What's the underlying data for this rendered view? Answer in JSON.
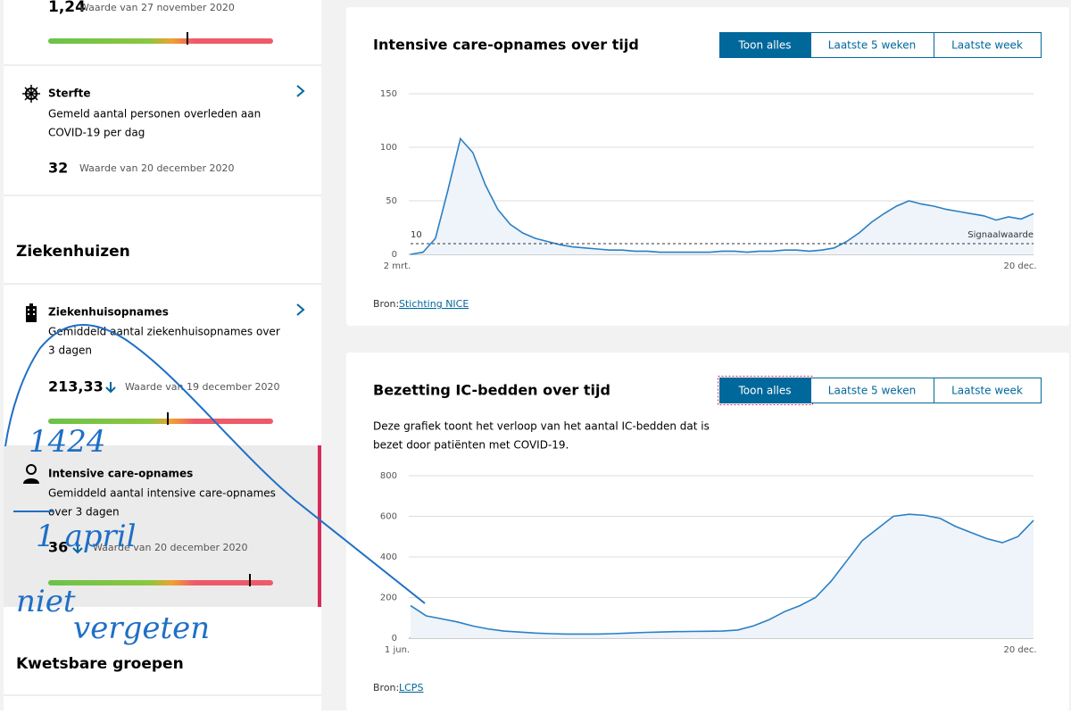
{
  "sidebar": {
    "top_value": "1,24",
    "top_date": "Waarde van 27 november 2020",
    "items": [
      {
        "title": "Sterfte",
        "description": [
          "Gemeld aantal personen overleden aan",
          "COVID-19 per dag"
        ],
        "value": "32",
        "date": "Waarde van 20 december 2020"
      },
      {
        "title": "Ziekenhuisopnames",
        "description": [
          "Gemiddeld aantal ziekenhuisopnames over",
          "3 dagen"
        ],
        "value": "213,33",
        "date": "Waarde van 19 december 2020"
      },
      {
        "title": "Intensive care-opnames",
        "description": [
          "Gemiddeld aantal intensive care-opnames",
          "over 3 dagen"
        ],
        "value": "36",
        "date": "Waarde van 20 december 2020"
      }
    ],
    "sections": [
      "Ziekenhuizen",
      "Kwetsbare groepen"
    ]
  },
  "chart_data": [
    {
      "type": "line",
      "title": "Intensive care-opnames over tijd",
      "buttons": [
        "Toon alles",
        "Laatste 5 weken",
        "Laatste week"
      ],
      "categories": [
        "2 mrt.",
        null,
        null,
        null,
        null,
        null,
        null,
        null,
        null,
        null,
        null,
        null,
        null,
        null,
        null,
        null,
        null,
        null,
        null,
        null,
        null,
        null,
        null,
        null,
        null,
        null,
        null,
        null,
        null,
        null,
        null,
        null,
        null,
        null,
        null,
        null,
        null,
        null,
        null,
        null,
        null,
        null,
        null,
        null,
        null,
        null,
        null,
        null,
        null,
        null,
        "20 dec."
      ],
      "values": [
        0,
        2,
        15,
        60,
        108,
        95,
        65,
        42,
        28,
        20,
        15,
        12,
        9,
        7,
        6,
        5,
        4,
        4,
        3,
        3,
        2,
        2,
        2,
        2,
        2,
        3,
        3,
        2,
        3,
        3,
        4,
        4,
        3,
        4,
        6,
        12,
        20,
        30,
        38,
        45,
        50,
        47,
        45,
        42,
        40,
        38,
        36,
        32,
        35,
        33,
        38
      ],
      "color": "#2b7fc3",
      "ylim": [
        0,
        150
      ],
      "yticks": [
        0,
        50,
        100,
        150
      ],
      "grid": true,
      "signal_value": 10,
      "signal_label": "Signaalwaarde",
      "source_prefix": "Bron:",
      "source": "Stichting NICE"
    },
    {
      "type": "line",
      "title": "Bezetting IC-bedden over tijd",
      "buttons": [
        "Toon alles",
        "Laatste 5 weken",
        "Laatste week"
      ],
      "description": [
        "Deze grafiek toont het verloop van het aantal IC-bedden dat is",
        "bezet door patiënten met COVID-19."
      ],
      "categories": [
        "1 jun.",
        null,
        null,
        null,
        null,
        null,
        null,
        null,
        null,
        null,
        null,
        null,
        null,
        null,
        null,
        null,
        null,
        null,
        null,
        null,
        null,
        null,
        null,
        null,
        null,
        null,
        null,
        null,
        null,
        null,
        null,
        null,
        null,
        null,
        null,
        null,
        null,
        null,
        null,
        null,
        "20 dec."
      ],
      "values": [
        160,
        110,
        95,
        80,
        60,
        45,
        35,
        30,
        25,
        22,
        20,
        20,
        20,
        22,
        25,
        28,
        30,
        32,
        33,
        34,
        35,
        40,
        60,
        90,
        130,
        160,
        200,
        280,
        380,
        480,
        540,
        600,
        610,
        605,
        590,
        550,
        520,
        490,
        470,
        500,
        580
      ],
      "color": "#2b7fc3",
      "ylim": [
        0,
        800
      ],
      "yticks": [
        0,
        200,
        400,
        600,
        800
      ],
      "grid": true,
      "source_prefix": "Bron:",
      "source": "LCPS"
    }
  ],
  "annotations": [
    "1424",
    "1 april",
    "niet",
    "vergeten"
  ]
}
